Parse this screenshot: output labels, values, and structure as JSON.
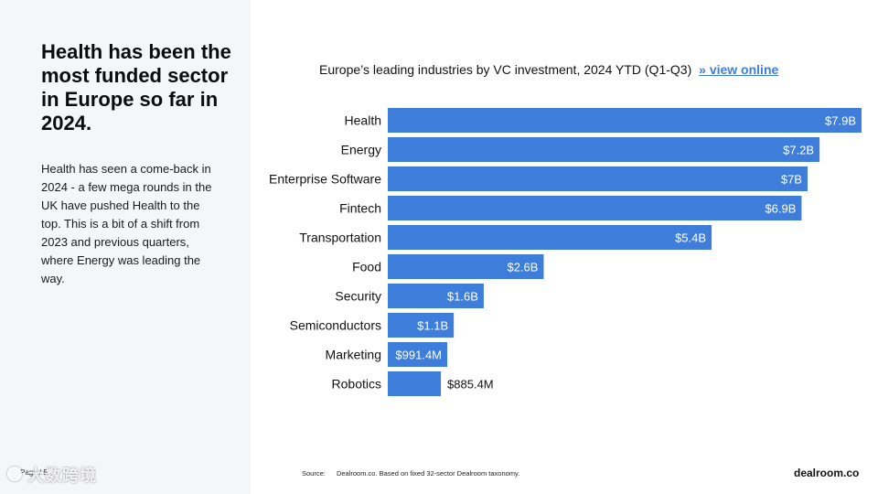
{
  "sidebar": {
    "headline": "Health has been the most funded sector in Europe so far in 2024.",
    "body": "Health has seen a come-back in 2024 - a few mega rounds in the UK have pushed Health to the top. This is a bit of a shift from 2023 and previous quarters, where Energy was leading the way.",
    "page_number": "Page / 5"
  },
  "watermark": {
    "text": "大数跨境"
  },
  "chart_header": {
    "title": "Europe’s leading industries by VC investment, 2024 YTD (Q1-Q3)",
    "link_text": "» view online"
  },
  "footer": {
    "source_label": "Source:",
    "source_text": "Dealroom.co. Based on fixed 32-sector Dealroom taxonomy.",
    "brand": "dealroom.co"
  },
  "colors": {
    "bar": "#3f7ddb",
    "label_inside": "#ffffff",
    "label_outside": "#111111"
  },
  "chart_data": {
    "type": "bar",
    "orientation": "horizontal",
    "title": "Europe’s leading industries by VC investment, 2024 YTD (Q1-Q3)",
    "categories": [
      "Health",
      "Energy",
      "Enterprise Software",
      "Fintech",
      "Transportation",
      "Food",
      "Security",
      "Semiconductors",
      "Marketing",
      "Robotics"
    ],
    "values": [
      7.9,
      7.2,
      7.0,
      6.9,
      5.4,
      2.6,
      1.6,
      1.1,
      0.9914,
      0.8854
    ],
    "value_unit": "USD billions",
    "data_labels": [
      "$7.9B",
      "$7.2B",
      "$7B",
      "$6.9B",
      "$5.4B",
      "$2.6B",
      "$1.6B",
      "$1.1B",
      "$991.4M",
      "$885.4M"
    ],
    "xlim": [
      0,
      7.9
    ],
    "grid": false,
    "legend": "none"
  }
}
